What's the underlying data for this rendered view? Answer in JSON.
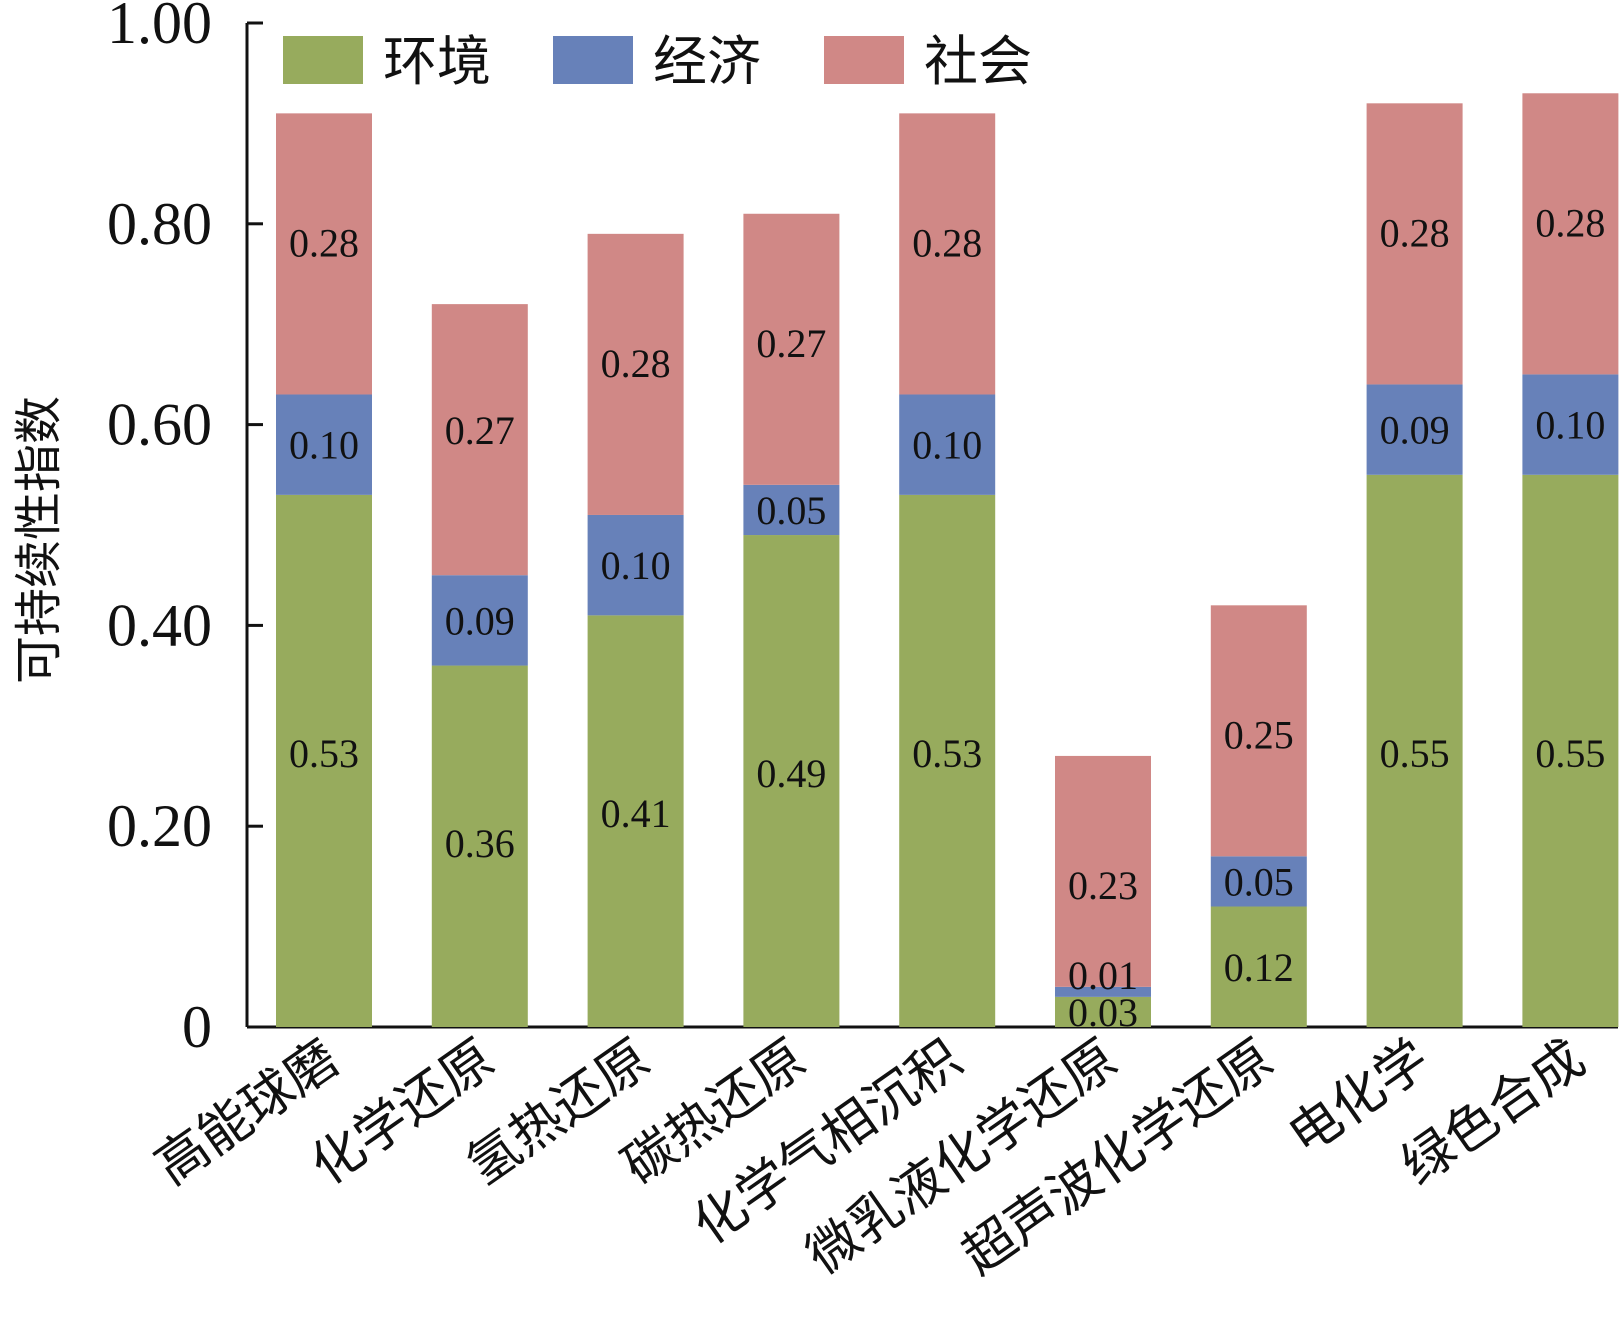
{
  "chart_data": {
    "type": "bar",
    "stacked": true,
    "ylabel": "可持续性指数",
    "ylim": [
      0,
      1.0
    ],
    "yticks": [
      "0",
      "0.20",
      "0.40",
      "0.60",
      "0.80",
      "1.00"
    ],
    "ytick_values": [
      0,
      0.2,
      0.4,
      0.6,
      0.8,
      1.0
    ],
    "legend_position": "top-left",
    "categories": [
      "高能球磨",
      "化学还原",
      "氢热还原",
      "碳热还原",
      "化学气相沉积",
      "微乳液化学还原",
      "超声波化学还原",
      "电化学",
      "绿色合成"
    ],
    "series": [
      {
        "name": "环境",
        "color": "#97ab5d",
        "values": [
          0.53,
          0.36,
          0.41,
          0.49,
          0.53,
          0.03,
          0.12,
          0.55,
          0.55
        ],
        "labels": [
          "0.53",
          "0.36",
          "0.41",
          "0.49",
          "0.53",
          "0.03",
          "0.12",
          "0.55",
          "0.55"
        ]
      },
      {
        "name": "经济",
        "color": "#6781b9",
        "values": [
          0.1,
          0.09,
          0.1,
          0.05,
          0.1,
          0.01,
          0.05,
          0.09,
          0.1
        ],
        "labels": [
          "0.10",
          "0.09",
          "0.10",
          "0.05",
          "0.10",
          "0.01",
          "0.05",
          "0.09",
          "0.10"
        ]
      },
      {
        "name": "社会",
        "color": "#d08886",
        "values": [
          0.28,
          0.27,
          0.28,
          0.27,
          0.28,
          0.23,
          0.25,
          0.28,
          0.28
        ],
        "labels": [
          "0.28",
          "0.27",
          "0.28",
          "0.27",
          "0.28",
          "0.23",
          "0.25",
          "0.28",
          "0.28"
        ]
      }
    ]
  }
}
